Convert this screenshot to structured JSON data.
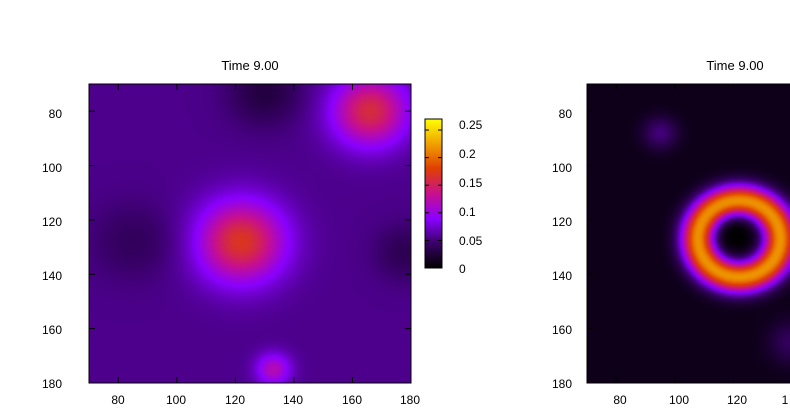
{
  "chart_data": [
    {
      "type": "heatmap",
      "title": "Time 9.00",
      "xlabel": "",
      "ylabel": "",
      "xlim": [
        70,
        180
      ],
      "ylim": [
        180,
        70
      ],
      "x_ticks": [
        "80",
        "100",
        "120",
        "140",
        "160",
        "180"
      ],
      "y_ticks": [
        "80",
        "100",
        "120",
        "140",
        "160",
        "180"
      ],
      "colorbar": {
        "range": [
          0,
          0.27
        ],
        "ticks": [
          "0",
          "0.05",
          "0.1",
          "0.15",
          "0.2",
          "0.25"
        ],
        "palette": [
          "#000000",
          "#3a006a",
          "#8a00ff",
          "#c8108c",
          "#e04000",
          "#f0a000",
          "#ffff00"
        ]
      },
      "background_value": 0.055,
      "features": [
        {
          "shape": "blob",
          "x": 122,
          "y": 128,
          "radius": 15,
          "value": 0.17
        },
        {
          "shape": "blob",
          "x": 166,
          "y": 80,
          "radius": 13,
          "value": 0.16
        },
        {
          "shape": "blob",
          "x": 133,
          "y": 175,
          "radius": 6,
          "value": 0.12
        },
        {
          "shape": "trough",
          "x": 130,
          "y": 73,
          "radius": 12,
          "value": 0.02
        },
        {
          "shape": "trough",
          "x": 178,
          "y": 132,
          "radius": 10,
          "value": 0.03
        },
        {
          "shape": "trough",
          "x": 85,
          "y": 128,
          "radius": 14,
          "value": 0.035
        }
      ]
    },
    {
      "type": "heatmap",
      "title": "Time 9.00",
      "xlabel": "",
      "ylabel": "",
      "xlim": [
        70,
        180
      ],
      "ylim": [
        180,
        70
      ],
      "x_ticks": [
        "80",
        "100",
        "120",
        "1"
      ],
      "y_ticks": [
        "80",
        "100",
        "120",
        "140",
        "160",
        "180"
      ],
      "background_value": 0.01,
      "features": [
        {
          "shape": "ring",
          "x": 122,
          "y": 127,
          "radius": 14,
          "width": 6,
          "value": 0.22
        },
        {
          "shape": "hole",
          "x": 121,
          "y": 126,
          "radius": 6,
          "value": 0.0
        },
        {
          "shape": "blob",
          "x": 95,
          "y": 88,
          "radius": 6,
          "value": 0.05
        },
        {
          "shape": "blob",
          "x": 140,
          "y": 165,
          "radius": 8,
          "value": 0.04
        }
      ]
    }
  ]
}
